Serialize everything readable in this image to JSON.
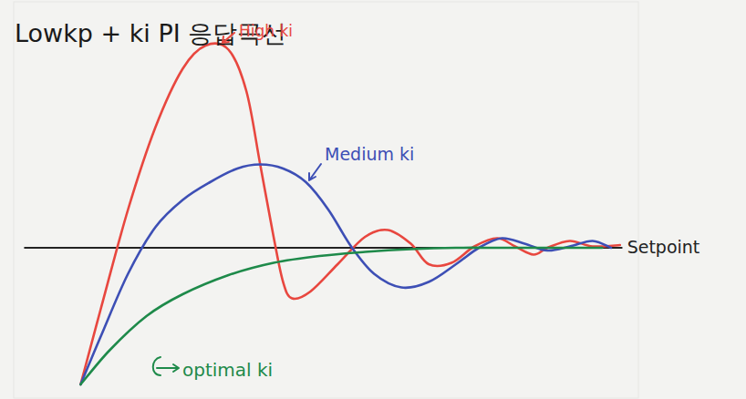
{
  "chart_data": {
    "type": "line",
    "title": "Lowkp + ki  PI 응답곡선",
    "xlim": [
      -12,
      100
    ],
    "ylim": [
      -0.1,
      2.8
    ],
    "xticks": [],
    "yticks": [],
    "grid": false,
    "tick_labels": false,
    "series": [
      {
        "name": "High ki",
        "color": "#e8473f",
        "x": [
          0,
          3.6,
          8.5,
          13.4,
          18.3,
          22.4,
          26.5,
          29.7,
          32.2,
          34.6,
          36.3,
          37.9,
          41.2,
          46.1,
          51.0,
          55.1,
          59.2,
          62.4,
          66.5,
          70.6,
          74.7,
          77.9,
          81.2,
          83.7,
          87.7,
          91.8,
          96.7
        ],
        "values": [
          0,
          0.55,
          1.28,
          1.88,
          2.31,
          2.48,
          2.45,
          2.15,
          1.61,
          1.08,
          0.75,
          0.63,
          0.68,
          0.88,
          1.08,
          1.13,
          1.03,
          0.88,
          0.89,
          1.01,
          1.07,
          1.01,
          0.95,
          1.0,
          1.05,
          1.01,
          1.02
        ]
      },
      {
        "name": "Medium ki",
        "color": "#3d4fb5",
        "x": [
          0,
          3.6,
          8.5,
          13.4,
          18.3,
          23.2,
          28.1,
          32.2,
          36.3,
          40.4,
          44.4,
          48.5,
          52.6,
          57.5,
          62.4,
          67.3,
          71.4,
          75.5,
          79.6,
          83.7,
          87.7,
          91.8,
          95.1
        ],
        "values": [
          0,
          0.35,
          0.81,
          1.15,
          1.35,
          1.48,
          1.58,
          1.61,
          1.58,
          1.48,
          1.28,
          1.01,
          0.81,
          0.71,
          0.75,
          0.88,
          1.0,
          1.07,
          1.03,
          0.98,
          1.01,
          1.05,
          1.0
        ]
      },
      {
        "name": "optimal ki",
        "color": "#1e8a4a",
        "x": [
          0,
          5.2,
          11.8,
          18.3,
          26.5,
          34.6,
          42.8,
          51.0,
          59.2,
          67.3,
          75.5,
          83.7,
          93.5
        ],
        "values": [
          0,
          0.25,
          0.5,
          0.66,
          0.8,
          0.89,
          0.94,
          0.97,
          0.99,
          1.0,
          1.0,
          1.0,
          1.0
        ]
      },
      {
        "name": "Setpoint",
        "color": "#222222",
        "x": [
          -10,
          97
        ],
        "values": [
          1,
          1
        ]
      }
    ]
  }
}
